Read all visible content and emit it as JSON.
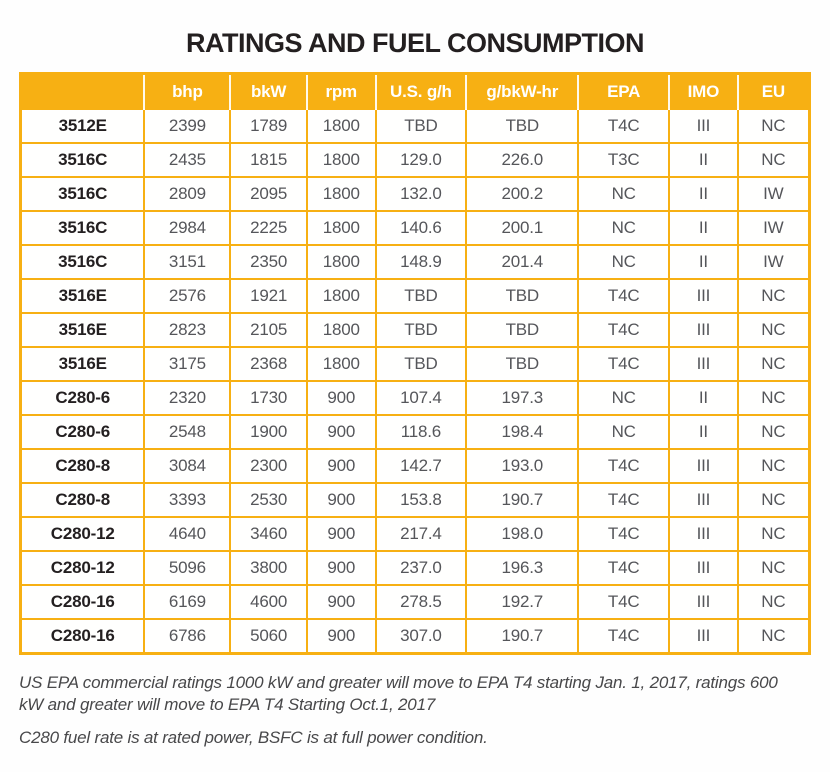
{
  "title": "RATINGS AND FUEL CONSUMPTION",
  "colors": {
    "accent": "#F7B013",
    "header_text": "#FFFFFF",
    "model_text": "#231F20",
    "data_text": "#55565A",
    "note_text": "#48484A"
  },
  "chart_data": {
    "type": "table",
    "title": "RATINGS AND FUEL CONSUMPTION",
    "columns": [
      "",
      "bhp",
      "bkW",
      "rpm",
      "U.S. g/h",
      "g/bkW-hr",
      "EPA",
      "IMO",
      "EU"
    ],
    "rows": [
      [
        "3512E",
        "2399",
        "1789",
        "1800",
        "TBD",
        "TBD",
        "T4C",
        "III",
        "NC"
      ],
      [
        "3516C",
        "2435",
        "1815",
        "1800",
        "129.0",
        "226.0",
        "T3C",
        "II",
        "NC"
      ],
      [
        "3516C",
        "2809",
        "2095",
        "1800",
        "132.0",
        "200.2",
        "NC",
        "II",
        "IW"
      ],
      [
        "3516C",
        "2984",
        "2225",
        "1800",
        "140.6",
        "200.1",
        "NC",
        "II",
        "IW"
      ],
      [
        "3516C",
        "3151",
        "2350",
        "1800",
        "148.9",
        "201.4",
        "NC",
        "II",
        "IW"
      ],
      [
        "3516E",
        "2576",
        "1921",
        "1800",
        "TBD",
        "TBD",
        "T4C",
        "III",
        "NC"
      ],
      [
        "3516E",
        "2823",
        "2105",
        "1800",
        "TBD",
        "TBD",
        "T4C",
        "III",
        "NC"
      ],
      [
        "3516E",
        "3175",
        "2368",
        "1800",
        "TBD",
        "TBD",
        "T4C",
        "III",
        "NC"
      ],
      [
        "C280-6",
        "2320",
        "1730",
        "900",
        "107.4",
        "197.3",
        "NC",
        "II",
        "NC"
      ],
      [
        "C280-6",
        "2548",
        "1900",
        "900",
        "118.6",
        "198.4",
        "NC",
        "II",
        "NC"
      ],
      [
        "C280-8",
        "3084",
        "2300",
        "900",
        "142.7",
        "193.0",
        "T4C",
        "III",
        "NC"
      ],
      [
        "C280-8",
        "3393",
        "2530",
        "900",
        "153.8",
        "190.7",
        "T4C",
        "III",
        "NC"
      ],
      [
        "C280-12",
        "4640",
        "3460",
        "900",
        "217.4",
        "198.0",
        "T4C",
        "III",
        "NC"
      ],
      [
        "C280-12",
        "5096",
        "3800",
        "900",
        "237.0",
        "196.3",
        "T4C",
        "III",
        "NC"
      ],
      [
        "C280-16",
        "6169",
        "4600",
        "900",
        "278.5",
        "192.7",
        "T4C",
        "III",
        "NC"
      ],
      [
        "C280-16",
        "6786",
        "5060",
        "900",
        "307.0",
        "190.7",
        "T4C",
        "III",
        "NC"
      ]
    ]
  },
  "footnotes": [
    "US EPA commercial ratings 1000 kW and greater will move to EPA T4 starting Jan. 1, 2017, ratings 600 kW and greater will move to EPA T4 Starting Oct.1, 2017",
    "C280 fuel rate is at rated power, BSFC is at full power condition."
  ]
}
